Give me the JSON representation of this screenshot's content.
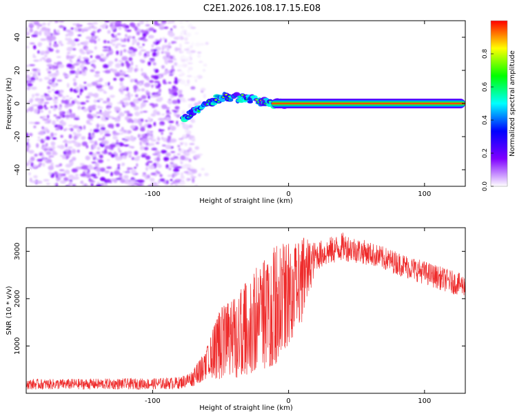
{
  "title": "C2E1.2026.108.17.15.E08",
  "chart_data": [
    {
      "type": "heatmap",
      "name": "spectrogram",
      "xlabel": "Height of straight line (km)",
      "ylabel": "Frequency (Hz)",
      "xlim": [
        -193,
        130
      ],
      "ylim": [
        -50,
        50
      ],
      "xticks": [
        -100,
        0,
        100
      ],
      "yticks": [
        -40,
        -20,
        0,
        20,
        40
      ],
      "colorbar": {
        "label": "Normalized spectral amplitude",
        "range": [
          0,
          1
        ],
        "ticks": [
          "0.0",
          "0.2",
          "0.4",
          "0.6",
          "0.8"
        ],
        "tick_values": [
          0,
          0.2,
          0.4,
          0.6,
          0.8
        ],
        "colormap": [
          "#ffffff",
          "#7f00ff",
          "#0000ff",
          "#00ffff",
          "#00ff00",
          "#ffff00",
          "#ff0000"
        ]
      },
      "features": [
        {
          "label": "noise",
          "x_range": [
            -193,
            -70
          ],
          "freq_range": [
            -50,
            50
          ]
        },
        {
          "label": "drifting signal",
          "points": [
            [
              -78,
              -10
            ],
            [
              -70,
              -5
            ],
            [
              -55,
              2
            ],
            [
              -45,
              4
            ],
            [
              -30,
              3
            ],
            [
              -20,
              1
            ],
            [
              -10,
              0
            ],
            [
              0,
              0
            ]
          ]
        },
        {
          "label": "stable carrier",
          "x_range": [
            0,
            130
          ],
          "freq": 0
        }
      ]
    },
    {
      "type": "line",
      "name": "snr",
      "xlabel": "Height of straight line (km)",
      "ylabel": "SNR (10 * v/v)",
      "xlim": [
        -193,
        130
      ],
      "ylim": [
        0,
        3500
      ],
      "xticks": [
        -100,
        0,
        100
      ],
      "yticks": [
        1000,
        2000,
        3000
      ],
      "color": "#ee2b2b",
      "envelope": {
        "x": [
          -193,
          -150,
          -100,
          -80,
          -70,
          -60,
          -50,
          -40,
          -30,
          -20,
          -10,
          0,
          10,
          20,
          30,
          40,
          50,
          60,
          70,
          80,
          90,
          100,
          110,
          120,
          130
        ],
        "low": [
          80,
          80,
          80,
          90,
          150,
          300,
          300,
          300,
          400,
          500,
          600,
          1000,
          1500,
          2600,
          2700,
          2800,
          2750,
          2700,
          2600,
          2500,
          2400,
          2300,
          2200,
          2100,
          2050
        ],
        "high": [
          300,
          310,
          320,
          350,
          500,
          1000,
          1800,
          2000,
          2400,
          2800,
          3100,
          3200,
          3300,
          3200,
          3300,
          3400,
          3300,
          3200,
          3100,
          3000,
          2900,
          2800,
          2700,
          2600,
          2500
        ]
      }
    }
  ]
}
